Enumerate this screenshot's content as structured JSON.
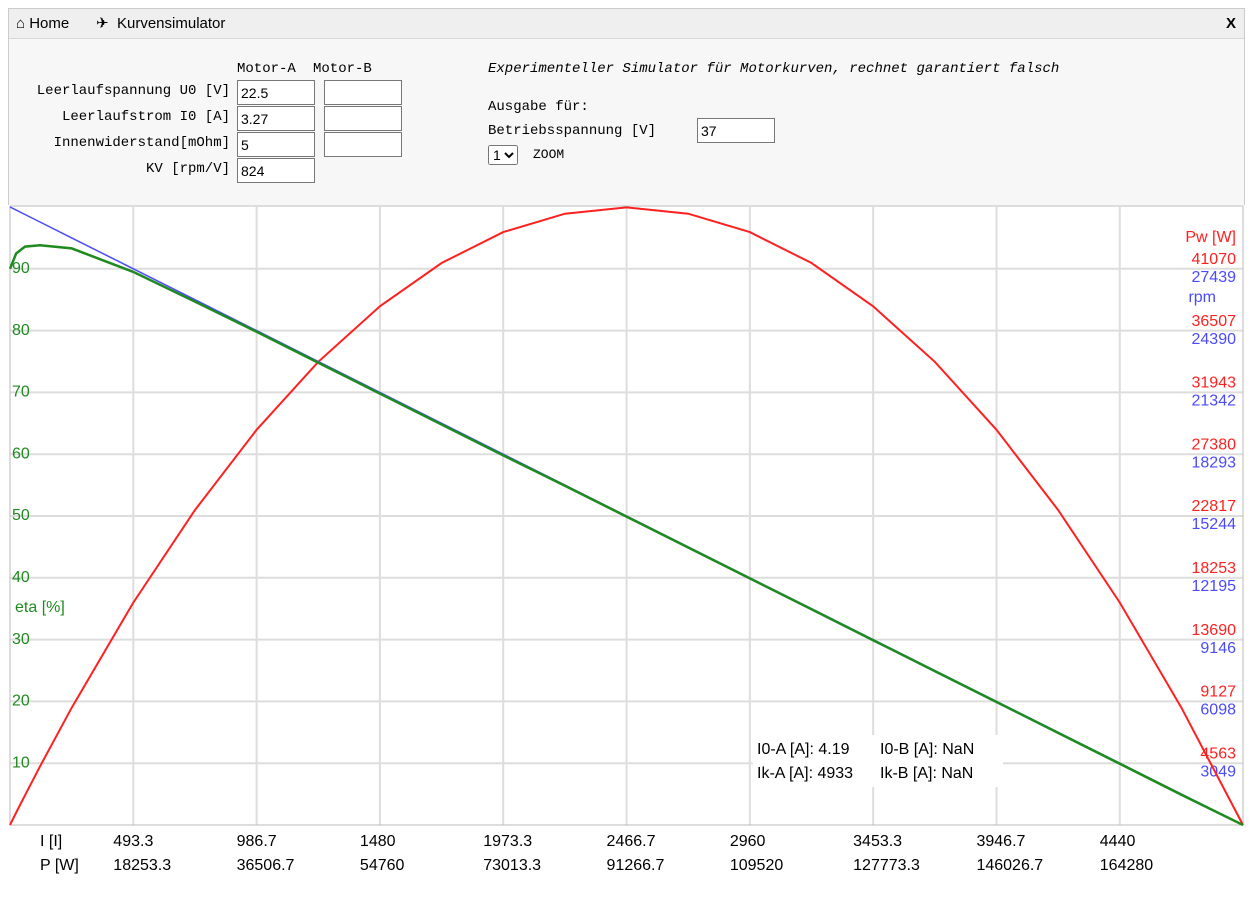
{
  "header": {
    "home": "⌂ Home",
    "separator": "✈",
    "title": "Kurvensimulator",
    "close": "X"
  },
  "form": {
    "columns": [
      "Motor-A",
      "Motor-B"
    ],
    "rows": [
      {
        "label": "Leerlaufspannung U0 [V]",
        "motor_a": 22.5
      },
      {
        "label": "Leerlaufstrom I0 [A]",
        "motor_a": 3.27
      },
      {
        "label": "Innenwiderstand[mOhm]",
        "motor_a": 5
      },
      {
        "label": "KV [rpm/V]",
        "motor_a": 824
      }
    ]
  },
  "output": {
    "description": "Experimenteller Simulator für Motorkurven, rechnet garantiert falsch",
    "heading": "Ausgabe für:",
    "voltage_label": "Betriebsspannung [V]",
    "voltage": 37,
    "zoom_value": 1,
    "zoom_label": "ZOOM"
  },
  "chart_data": {
    "type": "line",
    "xlabel": "I [I]",
    "x2label": "P [W]",
    "x": [
      0,
      25,
      60,
      120,
      246.7,
      493.3,
      740,
      986.7,
      1233.3,
      1480,
      1726.7,
      1973.3,
      2220,
      2466.7,
      2713.3,
      2960,
      3206.7,
      3453.3,
      3700,
      3946.7,
      4193.3,
      4440,
      4686.7,
      4933
    ],
    "xlim": [
      0,
      4933
    ],
    "xticks": [
      493.3,
      986.7,
      1480,
      1973.3,
      2466.7,
      2960,
      3453.3,
      3946.7,
      4440
    ],
    "x2lim": [
      0,
      182521
    ],
    "x2ticks": [
      18253.3,
      36506.7,
      54760,
      73013.3,
      91266.7,
      109520,
      127773.3,
      146026.7,
      164280
    ],
    "ylim": [
      0,
      100
    ],
    "yticks": [
      10,
      20,
      30,
      40,
      50,
      60,
      70,
      80,
      90
    ],
    "y2lim": [
      0,
      45633
    ],
    "y2ticks": [
      4563,
      9127,
      13690,
      18253,
      22817,
      27380,
      31943,
      36507,
      41070
    ],
    "y3lim": [
      0,
      30488
    ],
    "y3ticks": [
      3049,
      6098,
      9146,
      12195,
      15244,
      18293,
      21342,
      24390,
      27439
    ],
    "grid": true,
    "series": [
      {
        "name": "Pw [W]",
        "color": "#ff2020",
        "axis": "y2",
        "values": [
          0,
          920,
          2191,
          4330,
          8660,
          16420,
          23260,
          29180,
          34200,
          38300,
          41500,
          43780,
          45140,
          45600,
          45140,
          43780,
          41500,
          38300,
          34200,
          29180,
          23260,
          16420,
          8660,
          0
        ]
      },
      {
        "name": "rpm",
        "color": "#4a4aff",
        "axis": "y3",
        "values": [
          30488,
          30333,
          30117,
          29746,
          28964,
          27439,
          25915,
          24390,
          22866,
          21342,
          19818,
          18293,
          16769,
          15244,
          13720,
          12195,
          10671,
          9146,
          7622,
          6098,
          4573,
          3049,
          1524,
          0
        ]
      },
      {
        "name": "eta [%]",
        "color": "#1f8a1f",
        "axis": "y",
        "values": [
          90,
          92.5,
          93.6,
          93.8,
          93.3,
          89.5,
          84.7,
          79.8,
          74.8,
          69.8,
          64.8,
          59.8,
          54.9,
          49.9,
          44.9,
          39.9,
          34.9,
          29.9,
          24.9,
          19.9,
          14.9,
          9.9,
          4.9,
          0
        ]
      }
    ],
    "annotations": [
      "I0-A [A]: 4.19",
      "I0-B [A]: NaN",
      "Ik-A [A]: 4933",
      "Ik-B [A]: NaN"
    ]
  }
}
